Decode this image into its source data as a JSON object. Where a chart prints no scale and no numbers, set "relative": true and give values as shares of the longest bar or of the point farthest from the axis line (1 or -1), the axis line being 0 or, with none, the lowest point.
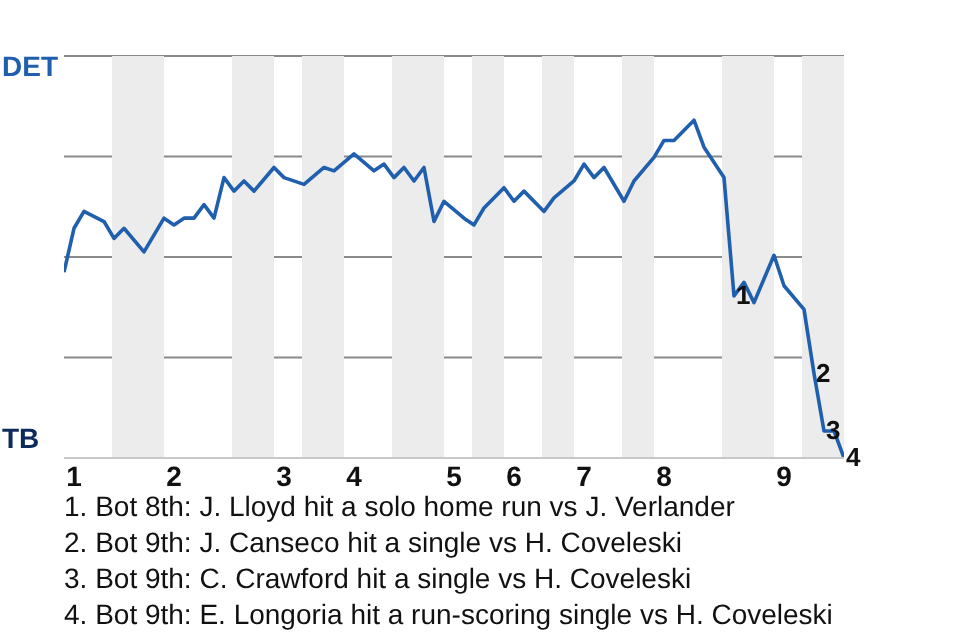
{
  "chart_data": {
    "type": "line",
    "relative": true,
    "categories": [
      null,
      "1",
      null,
      null,
      null,
      null,
      null,
      null,
      null,
      null,
      null,
      "2",
      null,
      null,
      null,
      null,
      null,
      null,
      null,
      null,
      null,
      null,
      "3",
      null,
      null,
      null,
      null,
      null,
      null,
      "4",
      null,
      null,
      null,
      null,
      null,
      null,
      null,
      null,
      null,
      "5",
      null,
      null,
      null,
      null,
      null,
      "6",
      null,
      null,
      null,
      null,
      null,
      null,
      "7",
      null,
      null,
      null,
      null,
      null,
      null,
      null,
      "8",
      null,
      null,
      null,
      null,
      null,
      null,
      null,
      null,
      null,
      null,
      null,
      "9",
      null,
      null,
      null,
      null,
      null,
      null
    ],
    "series": [
      {
        "color": "#1f5fae",
        "values": [
          0.55,
          0.68,
          0.73,
          null,
          0.7,
          0.65,
          0.68,
          null,
          0.61,
          null,
          0.71,
          0.69,
          0.71,
          0.71,
          0.75,
          0.71,
          0.83,
          0.79,
          0.82,
          0.79,
          null,
          0.86,
          0.83,
          null,
          0.81,
          null,
          0.86,
          0.85,
          null,
          0.9,
          null,
          0.85,
          0.87,
          0.83,
          0.86,
          0.82,
          0.86,
          0.7,
          0.76,
          null,
          0.71,
          0.69,
          0.74,
          null,
          0.8,
          0.76,
          0.79,
          null,
          0.73,
          0.77,
          null,
          0.82,
          0.87,
          0.83,
          0.86,
          null,
          0.76,
          0.82,
          null,
          0.89,
          0.94,
          0.94,
          null,
          1,
          0.92,
          null,
          0.83,
          0.48,
          0.52,
          0.46,
          null,
          0.6,
          0.51,
          null,
          0.44,
          0.25,
          0.08,
          0.08,
          0
        ]
      }
    ],
    "grid": "y",
    "annotations": [
      {
        "text": "1",
        "y": 0.48
      },
      {
        "text": "2",
        "y": 0.25
      },
      {
        "text": "3",
        "y": 0.08
      },
      {
        "text": "4",
        "y": 0
      },
      "DET",
      "TB",
      "1. Bot 8th: J. Lloyd hit a solo home run vs J. Verlander",
      "2. Bot 9th: J. Canseco hit a single vs H. Coveleski",
      "3. Bot 9th: C. Crawford hit a single vs H. Coveleski",
      "4. Bot 9th: E. Longoria hit a run-scoring single vs H. Coveleski"
    ]
  }
}
